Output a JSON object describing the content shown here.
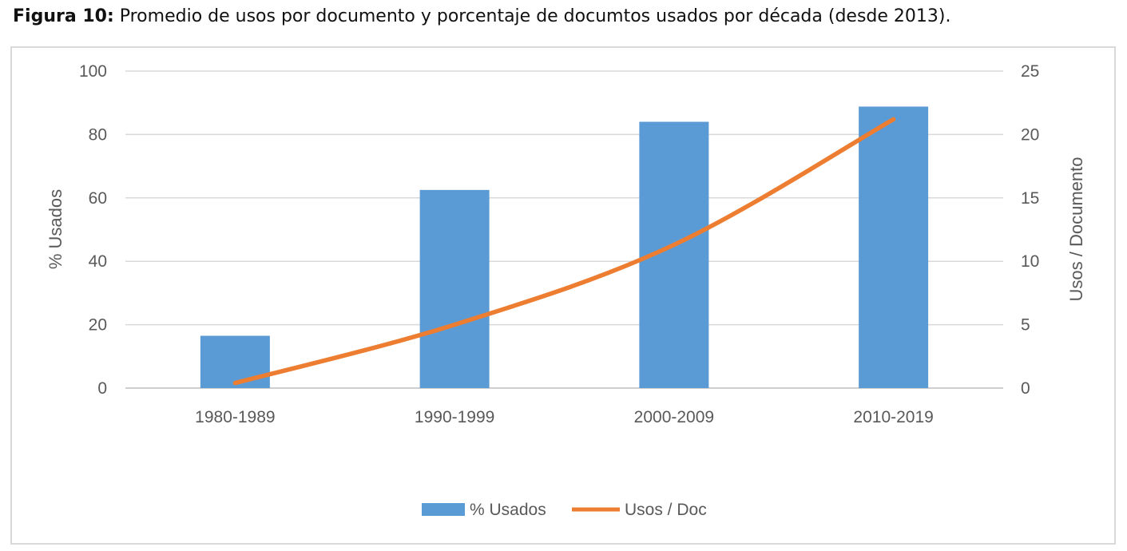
{
  "caption": {
    "prefix": "Figura 10:",
    "text": " Promedio de usos por documento y porcentaje de documtos usados por década (desde 2013)."
  },
  "chart_data": {
    "type": "bar",
    "categories": [
      "1980-1989",
      "1990-1999",
      "2000-2009",
      "2010-2019"
    ],
    "series": [
      {
        "name": "% Usados",
        "type": "bar",
        "axis": "left",
        "color": "#5b9bd5",
        "values": [
          16.5,
          62.5,
          84.0,
          88.8
        ]
      },
      {
        "name": "Usos / Doc",
        "type": "line",
        "axis": "right",
        "color": "#ed7d31",
        "values": [
          0.4,
          5.0,
          11.3,
          21.2
        ]
      }
    ],
    "ylabel": "% Usados",
    "ylim": [
      0,
      100
    ],
    "yticks": [
      "0",
      "20",
      "40",
      "60",
      "80",
      "100"
    ],
    "y2label": "Usos / Documento",
    "y2lim": [
      0,
      25
    ],
    "y2ticks": [
      "0",
      "5",
      "10",
      "15",
      "20",
      "25"
    ],
    "grid": true,
    "legend_position": "bottom"
  }
}
